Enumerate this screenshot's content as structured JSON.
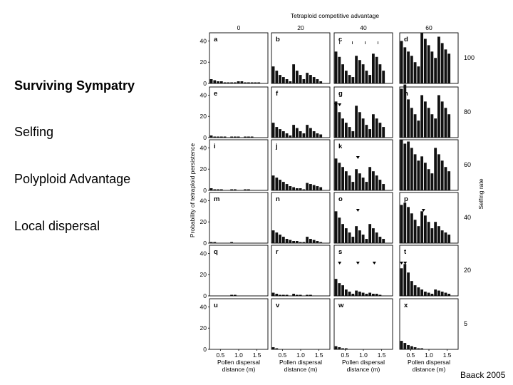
{
  "slide": {
    "bullets": [
      "Surviving Sympatry",
      "Selfing",
      "Polyploid Advantage",
      "Local dispersal"
    ],
    "credit": "Baack 2005"
  },
  "chart_data": {
    "type": "bar",
    "top_axis_title": "Tetraploid competitive advantage",
    "top_ticks": [
      "0",
      "20",
      "40",
      "60"
    ],
    "ylabel": "Probability of tetraploid persistence",
    "yticks": [
      0,
      20,
      40
    ],
    "ylim": [
      0,
      45
    ],
    "right_axis_title": "Selfing rate",
    "selfing_rates": [
      "100",
      "80",
      "60",
      "40",
      "20",
      "5"
    ],
    "xlabel": "Pollen dispersal distance (m)",
    "xticks": [
      "0.5",
      "1.0",
      "1.5"
    ],
    "x_range": [
      0.2,
      1.8
    ],
    "panel_labels": [
      [
        "a",
        "b",
        "c",
        "d"
      ],
      [
        "e",
        "f",
        "g",
        "h"
      ],
      [
        "i",
        "j",
        "k",
        "l"
      ],
      [
        "m",
        "n",
        "o",
        "p"
      ],
      [
        "q",
        "r",
        "s",
        "t"
      ],
      [
        "u",
        "v",
        "w",
        "x"
      ]
    ],
    "panels": [
      [
        [
          4,
          3,
          2,
          2,
          1,
          1,
          1,
          1,
          2,
          2,
          1,
          1,
          1,
          1,
          1
        ],
        [
          16,
          12,
          8,
          6,
          4,
          2,
          18,
          12,
          8,
          4,
          10,
          8,
          6,
          4,
          2
        ],
        [
          30,
          25,
          18,
          12,
          8,
          6,
          26,
          22,
          18,
          12,
          8,
          28,
          25,
          18,
          12
        ],
        [
          40,
          34,
          30,
          26,
          20,
          16,
          48,
          42,
          36,
          30,
          24,
          44,
          38,
          32,
          28
        ]
      ],
      [
        [
          2,
          1,
          1,
          1,
          1,
          0,
          1,
          1,
          1,
          0,
          1,
          1,
          1,
          0,
          0
        ],
        [
          14,
          10,
          8,
          6,
          4,
          2,
          12,
          9,
          6,
          4,
          12,
          9,
          6,
          4,
          3
        ],
        [
          34,
          24,
          18,
          14,
          10,
          6,
          30,
          24,
          18,
          12,
          8,
          22,
          18,
          14,
          10
        ],
        [
          46,
          50,
          36,
          28,
          22,
          16,
          40,
          34,
          28,
          22,
          18,
          40,
          34,
          28,
          22
        ]
      ],
      [
        [
          2,
          1,
          1,
          1,
          0,
          0,
          1,
          1,
          0,
          0,
          1,
          1,
          0,
          0,
          0
        ],
        [
          14,
          12,
          10,
          8,
          6,
          4,
          3,
          2,
          2,
          1,
          7,
          6,
          5,
          4,
          3
        ],
        [
          30,
          26,
          22,
          18,
          14,
          8,
          20,
          16,
          12,
          8,
          22,
          18,
          14,
          10,
          6
        ],
        [
          48,
          44,
          46,
          40,
          34,
          28,
          32,
          26,
          20,
          16,
          40,
          34,
          28,
          22,
          18
        ]
      ],
      [
        [
          1,
          1,
          0,
          0,
          0,
          0,
          1,
          0,
          0,
          0,
          0,
          0,
          0,
          0,
          0
        ],
        [
          12,
          10,
          8,
          6,
          4,
          3,
          2,
          2,
          1,
          1,
          6,
          4,
          3,
          2,
          1
        ],
        [
          30,
          24,
          18,
          14,
          10,
          6,
          16,
          12,
          8,
          4,
          18,
          14,
          10,
          6,
          4
        ],
        [
          36,
          38,
          34,
          28,
          22,
          16,
          30,
          26,
          20,
          14,
          20,
          16,
          12,
          10,
          8
        ]
      ],
      [
        [
          0,
          0,
          0,
          0,
          0,
          0,
          1,
          1,
          0,
          0,
          0,
          0,
          0,
          0,
          0
        ],
        [
          3,
          2,
          1,
          1,
          1,
          0,
          2,
          1,
          1,
          0,
          1,
          1,
          0,
          0,
          0
        ],
        [
          16,
          12,
          10,
          6,
          4,
          2,
          5,
          4,
          3,
          2,
          3,
          2,
          2,
          1,
          0
        ],
        [
          26,
          30,
          22,
          14,
          10,
          8,
          6,
          4,
          3,
          2,
          6,
          5,
          4,
          3,
          2
        ]
      ],
      [
        [
          0,
          0,
          0,
          0,
          0,
          0,
          0,
          0,
          0,
          0,
          0,
          0,
          0,
          0,
          0
        ],
        [
          2,
          1,
          0,
          0,
          0,
          0,
          0,
          0,
          0,
          0,
          0,
          0,
          0,
          0,
          0
        ],
        [
          3,
          2,
          1,
          1,
          0,
          0,
          0,
          0,
          0,
          0,
          0,
          0,
          0,
          0,
          0
        ],
        [
          8,
          6,
          4,
          3,
          2,
          1,
          1,
          0,
          0,
          0,
          0,
          0,
          0,
          0,
          0
        ]
      ]
    ],
    "arrow_panels": {
      "g": [
        0.25,
        0.35
      ],
      "k": [
        0.85
      ],
      "o": [
        0.85
      ],
      "p": [
        0.85
      ],
      "s": [
        0.35,
        0.85,
        1.3
      ],
      "t": [
        0.25,
        0.35
      ]
    },
    "tick_marks_panel_c": [
      0.35,
      0.7,
      1.05,
      1.4
    ]
  }
}
